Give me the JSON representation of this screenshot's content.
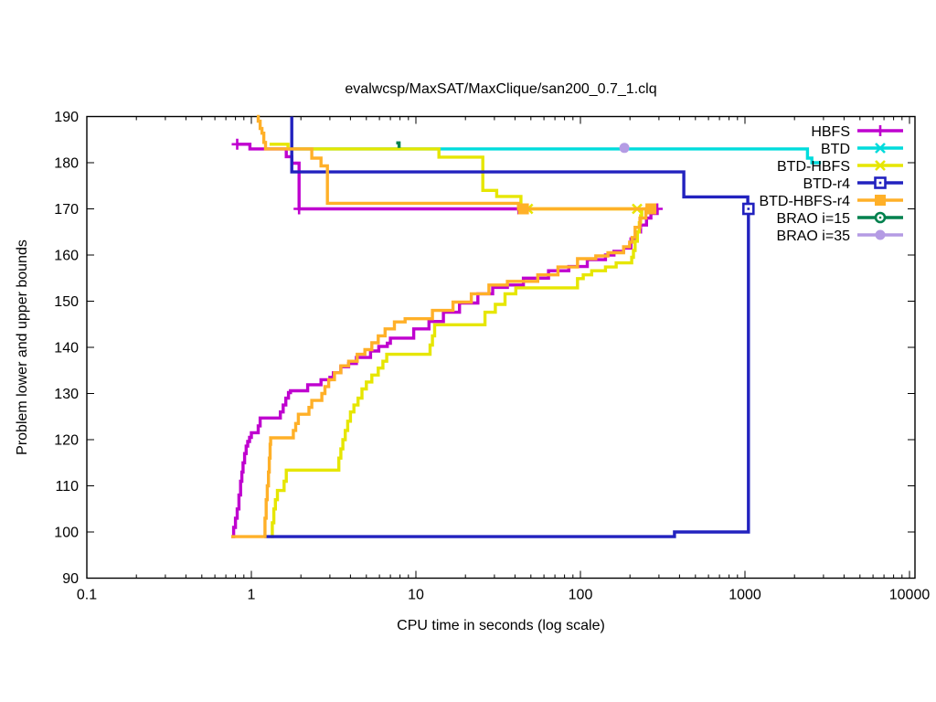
{
  "title": "evalwcsp/MaxSAT/MaxClique/san200_0.7_1.clq",
  "axes": {
    "x_label": "CPU time in seconds (log scale)",
    "y_label": "Problem lower and upper bounds"
  },
  "chart_data": {
    "type": "line",
    "title": "evalwcsp/MaxSAT/MaxClique/san200_0.7_1.clq",
    "xlabel": "CPU time in seconds (log scale)",
    "ylabel": "Problem lower and upper bounds",
    "x_scale": "log",
    "xlim": [
      0.1,
      10000
    ],
    "ylim": [
      90,
      190
    ],
    "grid": false,
    "legend_position": "top-right",
    "x_ticks": [
      "0.1",
      "1",
      "10",
      "100",
      "1000",
      "10000"
    ],
    "y_ticks": [
      90,
      100,
      110,
      120,
      130,
      140,
      150,
      160,
      170,
      180,
      190
    ],
    "series": [
      {
        "name": "HBFS",
        "color": "#bf00cf",
        "marker": "plus",
        "lines": [
          [
            [
              0.82,
              184
            ],
            [
              0.98,
              183
            ],
            [
              1.63,
              181.3
            ],
            [
              1.76,
              179.9
            ],
            [
              1.95,
              170
            ],
            [
              45,
              170
            ]
          ],
          [
            [
              0.755,
              99
            ],
            [
              0.78,
              101
            ],
            [
              0.8,
              103
            ],
            [
              0.82,
              105
            ],
            [
              0.84,
              108
            ],
            [
              0.86,
              111
            ],
            [
              0.875,
              113
            ],
            [
              0.89,
              115
            ],
            [
              0.91,
              117
            ],
            [
              0.93,
              118.6
            ],
            [
              0.95,
              119.6
            ],
            [
              0.975,
              120.5
            ],
            [
              1.0,
              121.5
            ],
            [
              1.1,
              123
            ],
            [
              1.13,
              124.7
            ],
            [
              1.5,
              126
            ],
            [
              1.56,
              127.5
            ],
            [
              1.62,
              129
            ],
            [
              1.68,
              130.2
            ],
            [
              1.73,
              130.6
            ],
            [
              2.2,
              131.9
            ],
            [
              2.65,
              133
            ],
            [
              3.0,
              133.5
            ],
            [
              3.15,
              134.5
            ],
            [
              3.5,
              135.8
            ],
            [
              3.9,
              136.5
            ],
            [
              4.35,
              137.8
            ],
            [
              5.3,
              139.2
            ],
            [
              5.95,
              140.2
            ],
            [
              6.7,
              140.9
            ],
            [
              7.0,
              142
            ],
            [
              9.7,
              144
            ],
            [
              12.0,
              145.6
            ],
            [
              14.7,
              147.6
            ],
            [
              18.4,
              149.6
            ],
            [
              23.8,
              151.6
            ],
            [
              29.3,
              153
            ],
            [
              36,
              153.5
            ],
            [
              45,
              155
            ],
            [
              64,
              156.6
            ],
            [
              85,
              157.5
            ],
            [
              110,
              159
            ],
            [
              142,
              160
            ],
            [
              160,
              160.8
            ],
            [
              183,
              161.5
            ],
            [
              203,
              163.5
            ],
            [
              218,
              165
            ],
            [
              232,
              166.5
            ],
            [
              252,
              168
            ],
            [
              268,
              169
            ],
            [
              293,
              170
            ]
          ]
        ],
        "markers": [
          [
            0.82,
            184
          ],
          [
            1.95,
            170
          ],
          [
            42,
            170
          ],
          [
            293,
            170
          ]
        ]
      },
      {
        "name": "BTD",
        "color": "#00dcdc",
        "marker": "cross",
        "lines": [
          [
            [
              1.65,
              183
            ],
            [
              2400,
              181
            ],
            [
              2550,
              180
            ],
            [
              2900,
              180
            ]
          ]
        ],
        "markers": []
      },
      {
        "name": "BTD-HBFS",
        "color": "#e6e600",
        "marker": "star",
        "lines": [
          [
            [
              1.29,
              184
            ],
            [
              1.67,
              183
            ],
            [
              13.8,
              181.2
            ],
            [
              25.5,
              174
            ],
            [
              31,
              172.7
            ],
            [
              43.5,
              170
            ],
            [
              221,
              170
            ]
          ],
          [
            [
              1.31,
              99
            ],
            [
              1.34,
              102
            ],
            [
              1.37,
              105
            ],
            [
              1.4,
              107
            ],
            [
              1.44,
              109
            ],
            [
              1.58,
              111
            ],
            [
              1.63,
              113.4
            ],
            [
              3.4,
              116
            ],
            [
              3.5,
              118
            ],
            [
              3.6,
              120
            ],
            [
              3.72,
              122
            ],
            [
              3.85,
              124
            ],
            [
              4.0,
              126
            ],
            [
              4.2,
              127.5
            ],
            [
              4.45,
              129
            ],
            [
              4.7,
              131
            ],
            [
              5.0,
              132.5
            ],
            [
              5.4,
              134
            ],
            [
              5.9,
              135.5
            ],
            [
              6.3,
              137
            ],
            [
              6.65,
              138.5
            ],
            [
              12.2,
              140.5
            ],
            [
              12.6,
              142.5
            ],
            [
              13.0,
              144.9
            ],
            [
              26.3,
              147.6
            ],
            [
              30.4,
              149.3
            ],
            [
              34.8,
              151.6
            ],
            [
              40.5,
              152.9
            ],
            [
              96,
              154.9
            ],
            [
              104,
              155.7
            ],
            [
              117,
              156.6
            ],
            [
              142,
              157.4
            ],
            [
              165,
              158.3
            ],
            [
              205,
              159.5
            ],
            [
              210,
              161
            ],
            [
              215,
              163
            ],
            [
              222,
              165
            ],
            [
              228,
              167
            ],
            [
              232,
              168.5
            ],
            [
              236,
              170
            ]
          ]
        ],
        "markers": [
          [
            48,
            170
          ],
          [
            221,
            170
          ]
        ]
      },
      {
        "name": "BTD-r4",
        "color": "#2222bf",
        "marker": "square-open",
        "lines": [
          [
            [
              1.76,
              190
            ],
            [
              1.76,
              178
            ],
            [
              425,
              172.6
            ],
            [
              1040,
              171
            ],
            [
              1050,
              170
            ]
          ],
          [
            [
              1.2,
              99
            ],
            [
              373,
              100
            ],
            [
              1050,
              170
            ]
          ]
        ],
        "markers": [
          [
            1050,
            170
          ]
        ]
      },
      {
        "name": "BTD-HBFS-r4",
        "color": "#ffb028",
        "marker": "square-filled",
        "lines": [
          [
            [
              1.08,
              190
            ],
            [
              1.1,
              189
            ],
            [
              1.13,
              187.4
            ],
            [
              1.16,
              186.4
            ],
            [
              1.19,
              184.4
            ],
            [
              1.22,
              183
            ],
            [
              2.33,
              181
            ],
            [
              2.65,
              179.3
            ],
            [
              2.9,
              171.2
            ],
            [
              42,
              170
            ],
            [
              268,
              170
            ]
          ],
          [
            [
              0.755,
              99
            ],
            [
              1.21,
              103
            ],
            [
              1.23,
              107
            ],
            [
              1.25,
              110
            ],
            [
              1.27,
              113
            ],
            [
              1.285,
              116
            ],
            [
              1.3,
              119
            ],
            [
              1.31,
              120.4
            ],
            [
              1.8,
              122
            ],
            [
              1.86,
              123.5
            ],
            [
              1.93,
              125.5
            ],
            [
              2.24,
              127
            ],
            [
              2.33,
              128.5
            ],
            [
              2.68,
              130
            ],
            [
              2.8,
              131.5
            ],
            [
              2.95,
              133
            ],
            [
              3.2,
              134.5
            ],
            [
              3.5,
              136
            ],
            [
              3.9,
              137
            ],
            [
              4.4,
              138.5
            ],
            [
              4.9,
              139.5
            ],
            [
              5.4,
              141
            ],
            [
              5.9,
              142.5
            ],
            [
              6.5,
              144
            ],
            [
              7.4,
              145.5
            ],
            [
              8.6,
              146.2
            ],
            [
              12.6,
              148
            ],
            [
              16.8,
              149.8
            ],
            [
              21.7,
              151.6
            ],
            [
              27.8,
              153.5
            ],
            [
              36,
              154.3
            ],
            [
              55,
              155.7
            ],
            [
              73,
              157.4
            ],
            [
              96,
              159.2
            ],
            [
              124,
              159.8
            ],
            [
              147,
              160.5
            ],
            [
              183,
              161.8
            ],
            [
              199,
              162.8
            ],
            [
              206,
              163.8
            ],
            [
              215,
              166
            ],
            [
              230,
              168
            ],
            [
              250,
              170
            ],
            [
              268,
              170
            ]
          ]
        ],
        "markers": [
          [
            45,
            170
          ],
          [
            268,
            170
          ]
        ]
      },
      {
        "name": "BRAO i=15",
        "color": "#00814e",
        "marker": "circle-open",
        "lines": [
          [
            [
              7.6,
              184.3
            ],
            [
              7.9,
              183.2
            ]
          ]
        ],
        "markers": []
      },
      {
        "name": "BRAO i=35",
        "color": "#b49be4",
        "marker": "circle-filled",
        "lines": [],
        "markers": [
          [
            185,
            183.2
          ]
        ]
      }
    ]
  }
}
